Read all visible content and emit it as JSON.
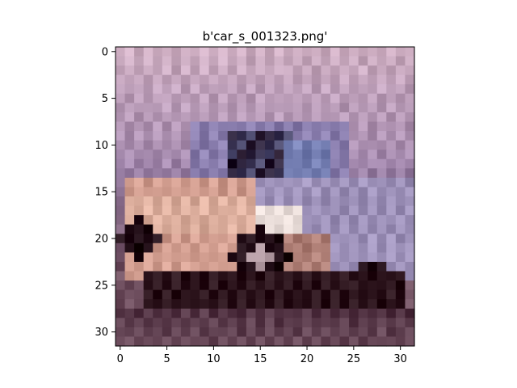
{
  "figure": {
    "title": "b'car_s_001323.png'"
  },
  "axes": {
    "x_ticks": [
      "0",
      "5",
      "10",
      "15",
      "20",
      "25",
      "30"
    ],
    "y_ticks": [
      "0",
      "5",
      "10",
      "15",
      "20",
      "25",
      "30"
    ],
    "xlim": [
      -0.5,
      31.5
    ],
    "ylim": [
      31.5,
      -0.5
    ]
  },
  "image": {
    "subject": "car",
    "resolution": "32x32",
    "palette": {
      "sky_top": "#d8b8cc",
      "sky_mid": "#b9a3c4",
      "haze": "#a58bb2",
      "window_dark": "#2c1e33",
      "window_blue": "#7f89bd",
      "roof": "#9488b8",
      "body_front": "#d9a396",
      "body_highlight": "#f0c8b4",
      "body_side": "#a89cc4",
      "headlight": "#f4e8e4",
      "wheel": "#2a161f",
      "wheel_rim": "#c8b0b8",
      "shadow": "#3a2028",
      "ground": "#5e3f4f",
      "ground_light": "#7a5a6a"
    }
  }
}
